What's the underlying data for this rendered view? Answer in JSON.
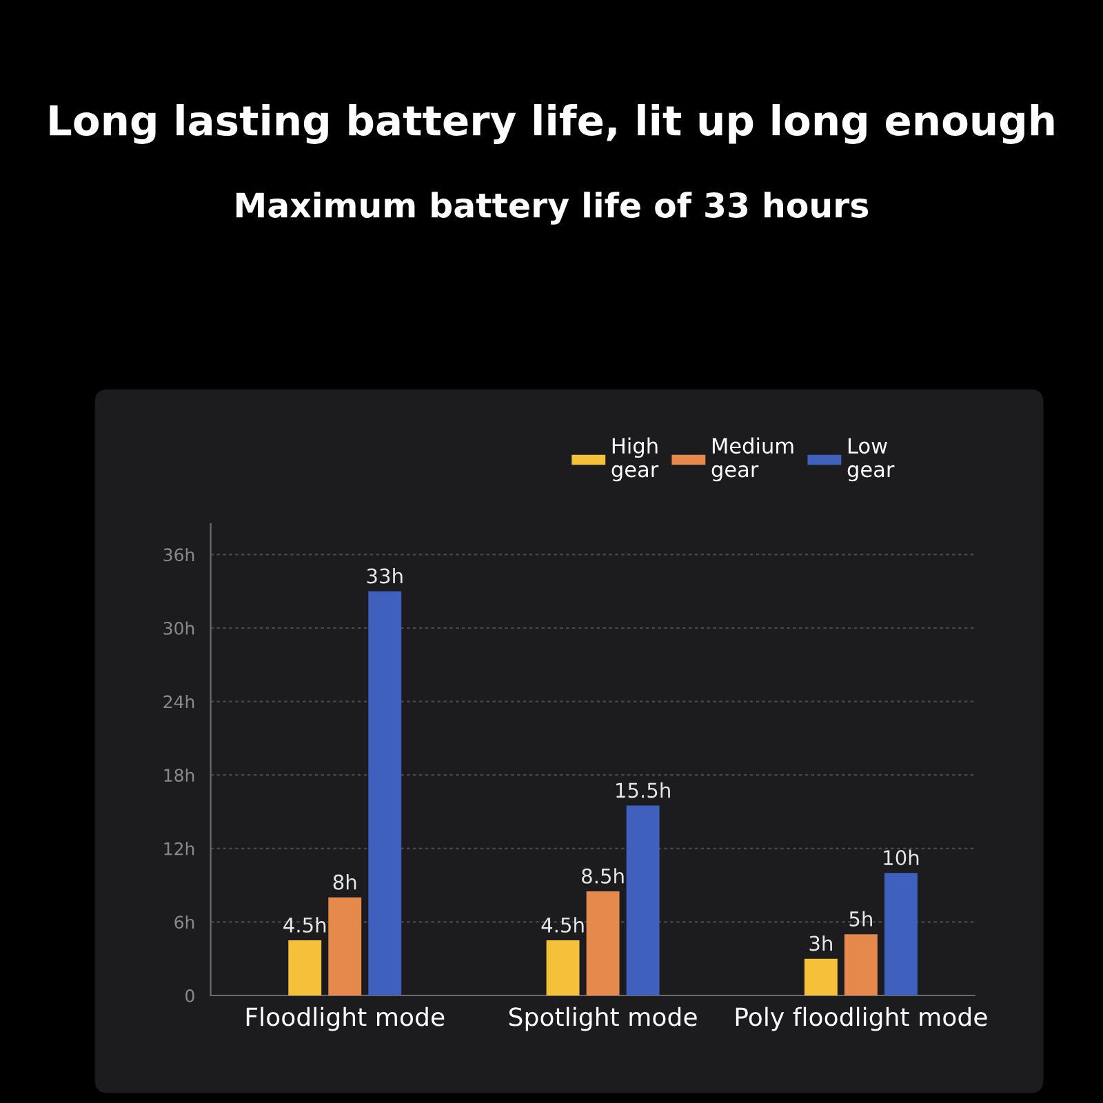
{
  "chart_data": {
    "type": "bar",
    "title": "Long lasting battery life, lit up long enough",
    "subtitle": "Maximum battery life of 33 hours",
    "categories": [
      "Floodlight mode",
      "Spotlight mode",
      "Poly floodlight mode"
    ],
    "series": [
      {
        "name": "High\ngear",
        "color": "#f5c03a",
        "values": [
          4.5,
          4.5,
          3
        ],
        "value_labels": [
          "4.5h",
          "4.5h",
          "3h"
        ]
      },
      {
        "name": "Medium\ngear",
        "color": "#e6894c",
        "values": [
          8,
          8.5,
          5
        ],
        "value_labels": [
          "8h",
          "8.5h",
          "5h"
        ]
      },
      {
        "name": "Low\ngear",
        "color": "#3f60bd",
        "values": [
          33,
          15.5,
          10
        ],
        "value_labels": [
          "33h",
          "15.5h",
          "10h"
        ]
      }
    ],
    "ylim": [
      0,
      38.5
    ],
    "yticks": [
      0,
      {
        "value": 6,
        "label": "6h"
      },
      {
        "value": 12,
        "label": "12h"
      },
      {
        "value": 18,
        "label": "18h"
      },
      {
        "value": 24,
        "label": "24h"
      },
      {
        "value": 30,
        "label": "30h"
      },
      {
        "value": 36,
        "label": "36h"
      }
    ],
    "grid": "y",
    "legend": "top right"
  }
}
